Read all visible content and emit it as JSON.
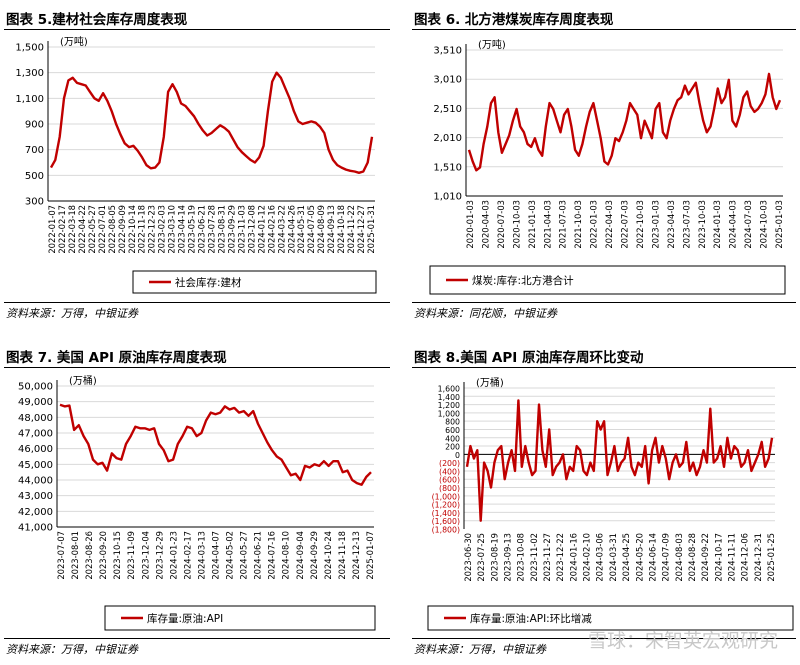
{
  "panels": [
    {
      "title": "图表 5.建材社会库存周度表现",
      "source": "资料来源：万得，中银证券",
      "chart_data": {
        "type": "line",
        "unit": "(万吨)",
        "ylim": [
          300,
          1500
        ],
        "yticks": [
          "300",
          "500",
          "700",
          "900",
          "1,100",
          "1,300",
          "1,500"
        ],
        "yvals": [
          300,
          500,
          700,
          900,
          1100,
          1300,
          1500
        ],
        "xticks": [
          "2022-01-07",
          "2022-02-17",
          "2022-03-18",
          "2022-04-22",
          "2022-05-27",
          "2022-07-01",
          "2022-08-05",
          "2022-09-09",
          "2022-10-14",
          "2022-11-18",
          "2022-12-23",
          "2023-02-03",
          "2023-03-10",
          "2023-04-14",
          "2023-05-19",
          "2023-06-21",
          "2023-07-28",
          "2023-08-31",
          "2023-09-29",
          "2023-11-03",
          "2023-12-08",
          "2024-01-12",
          "2024-02-16",
          "2024-03-22",
          "2024-04-26",
          "2024-05-31",
          "2024-07-05",
          "2024-08-09",
          "2024-09-13",
          "2024-10-18",
          "2024-11-22",
          "2024-12-27",
          "2025-01-31"
        ],
        "series": [
          {
            "name": "社会库存:建材",
            "color": "#c00000",
            "values": [
              560,
              620,
              800,
              1100,
              1240,
              1260,
              1220,
              1210,
              1200,
              1150,
              1100,
              1080,
              1140,
              1080,
              1000,
              900,
              820,
              750,
              720,
              730,
              690,
              640,
              580,
              555,
              560,
              600,
              800,
              1150,
              1210,
              1150,
              1060,
              1040,
              1000,
              960,
              900,
              850,
              810,
              830,
              860,
              890,
              870,
              840,
              780,
              720,
              680,
              650,
              620,
              600,
              640,
              730,
              1000,
              1230,
              1300,
              1260,
              1180,
              1100,
              1000,
              920,
              900,
              910,
              920,
              910,
              880,
              830,
              700,
              620,
              580,
              560,
              545,
              535,
              530,
              520,
              530,
              600,
              800
            ]
          }
        ],
        "grid": true,
        "legend": "bottom"
      }
    },
    {
      "title": "图表 6. 北方港煤炭库存周度表现",
      "source": "资料来源：同花顺，中银证券",
      "chart_data": {
        "type": "line",
        "unit": "(万吨)",
        "ylim": [
          1010,
          3510
        ],
        "yticks": [
          "1,010",
          "1,510",
          "2,010",
          "2,510",
          "3,010",
          "3,510"
        ],
        "yvals": [
          1010,
          1510,
          2010,
          2510,
          3010,
          3510
        ],
        "xticks": [
          "2020-01-03",
          "2020-04-03",
          "2020-07-03",
          "2020-10-03",
          "2021-01-03",
          "2021-04-03",
          "2021-07-03",
          "2021-10-03",
          "2022-01-03",
          "2022-04-03",
          "2022-07-03",
          "2022-10-03",
          "2023-01-03",
          "2023-04-03",
          "2023-07-03",
          "2023-10-03",
          "2024-01-03",
          "2024-04-03",
          "2024-07-03",
          "2024-10-03",
          "2025-01-03"
        ],
        "series": [
          {
            "name": "煤炭:库存:北方港合计",
            "color": "#c00000",
            "values": [
              1800,
              1600,
              1450,
              1500,
              1900,
              2200,
              2600,
              2700,
              2100,
              1750,
              1900,
              2050,
              2300,
              2500,
              2200,
              2100,
              1900,
              1850,
              2000,
              1800,
              1700,
              2200,
              2600,
              2500,
              2300,
              2100,
              2400,
              2500,
              2200,
              1800,
              1700,
              1900,
              2200,
              2450,
              2600,
              2300,
              2000,
              1600,
              1550,
              1700,
              2000,
              1950,
              2100,
              2300,
              2600,
              2500,
              2400,
              2000,
              2300,
              2150,
              2000,
              2500,
              2600,
              2100,
              2000,
              2300,
              2500,
              2650,
              2700,
              2900,
              2750,
              2850,
              2950,
              2600,
              2300,
              2100,
              2200,
              2500,
              2850,
              2600,
              2700,
              3000,
              2300,
              2200,
              2400,
              2700,
              2800,
              2550,
              2450,
              2500,
              2600,
              2750,
              3100,
              2700,
              2500,
              2650
            ]
          }
        ],
        "grid": true,
        "legend": "bottom"
      }
    },
    {
      "title": "图表 7. 美国 API 原油库存周度表现",
      "source": "资料来源：万得，中银证券",
      "chart_data": {
        "type": "line",
        "unit": "(万桶)",
        "ylim": [
          41000,
          50000
        ],
        "yticks": [
          "41,000",
          "42,000",
          "43,000",
          "44,000",
          "45,000",
          "46,000",
          "47,000",
          "48,000",
          "49,000",
          "50,000"
        ],
        "yvals": [
          41000,
          42000,
          43000,
          44000,
          45000,
          46000,
          47000,
          48000,
          49000,
          50000
        ],
        "xticks": [
          "2023-07-07",
          "2023-08-01",
          "2023-08-26",
          "2023-09-20",
          "2023-10-15",
          "2023-11-09",
          "2023-12-04",
          "2023-12-29",
          "2024-01-23",
          "2024-02-17",
          "2024-03-13",
          "2024-04-07",
          "2024-05-02",
          "2024-05-27",
          "2024-06-21",
          "2024-07-16",
          "2024-08-10",
          "2024-09-04",
          "2024-09-29",
          "2024-10-24",
          "2024-11-18",
          "2024-12-13",
          "2025-01-07"
        ],
        "series": [
          {
            "name": "库存量:原油:API",
            "color": "#c00000",
            "values": [
              48800,
              48700,
              48750,
              47200,
              47500,
              46800,
              46300,
              45300,
              45000,
              45100,
              44600,
              45700,
              45400,
              45300,
              46300,
              46800,
              47400,
              47300,
              47300,
              47200,
              47300,
              46300,
              45900,
              45200,
              45300,
              46300,
              46800,
              47400,
              47300,
              46800,
              47000,
              47800,
              48300,
              48200,
              48300,
              48700,
              48500,
              48600,
              48300,
              48400,
              48100,
              48400,
              47600,
              47000,
              46400,
              45900,
              45500,
              45300,
              44800,
              44300,
              44400,
              44000,
              44900,
              44800,
              45000,
              44900,
              45200,
              44900,
              45200,
              45200,
              44500,
              44600,
              44000,
              43800,
              43700,
              44200,
              44500
            ]
          }
        ],
        "grid": true,
        "legend": "bottom"
      }
    },
    {
      "title": "图表 8.美国 API 原油库存周环比变动",
      "source": "资料来源：万得，中银证券",
      "chart_data": {
        "type": "line",
        "unit": "(万桶)",
        "ylim": [
          -1800,
          1600
        ],
        "ytick_values": [
          -1800,
          -1600,
          -1400,
          -1200,
          -1000,
          -800,
          -600,
          -400,
          -200,
          0,
          200,
          400,
          600,
          800,
          1000,
          1200,
          1400,
          1600
        ],
        "ytick_labels": [
          "(1,800)",
          "(1,600)",
          "(1,400)",
          "(1,200)",
          "(1,000)",
          "(800)",
          "(600)",
          "(400)",
          "(200)",
          "0",
          "200",
          "400",
          "600",
          "800",
          "1,000",
          "1,200",
          "1,400",
          "1,600"
        ],
        "xticks": [
          "2023-06-30",
          "2023-07-25",
          "2023-08-19",
          "2023-09-13",
          "2023-10-08",
          "2023-11-02",
          "2023-11-27",
          "2023-12-22",
          "2024-01-16",
          "2024-02-10",
          "2024-03-06",
          "2024-03-31",
          "2024-04-25",
          "2024-05-20",
          "2024-06-14",
          "2024-07-09",
          "2024-08-03",
          "2024-08-28",
          "2024-09-22",
          "2024-10-17",
          "2024-11-11",
          "2024-12-06",
          "2024-12-31",
          "2025-01-25"
        ],
        "series": [
          {
            "name": "库存量:原油:API:环比增减",
            "color": "#c00000",
            "values": [
              -300,
              200,
              -100,
              100,
              -1600,
              -200,
              -400,
              -800,
              -200,
              100,
              200,
              -600,
              -200,
              100,
              -400,
              1300,
              -300,
              200,
              -200,
              -500,
              -400,
              1200,
              100,
              -300,
              600,
              -500,
              -300,
              -200,
              0,
              -600,
              -300,
              -400,
              200,
              100,
              -400,
              -500,
              -200,
              -400,
              800,
              600,
              800,
              -500,
              -200,
              200,
              -400,
              -200,
              -100,
              400,
              -300,
              -500,
              -200,
              -300,
              200,
              -700,
              100,
              400,
              -200,
              200,
              -100,
              -600,
              -200,
              0,
              -300,
              -200,
              300,
              -400,
              -200,
              -500,
              -300,
              100,
              -200,
              1100,
              -200,
              -100,
              200,
              -300,
              400,
              -100,
              200,
              100,
              -300,
              -200,
              100,
              -400,
              -200,
              0,
              300,
              -300,
              -100,
              400
            ]
          }
        ],
        "grid": true,
        "legend": "bottom"
      }
    }
  ],
  "watermark": "雪球：宋智英宏观研究"
}
